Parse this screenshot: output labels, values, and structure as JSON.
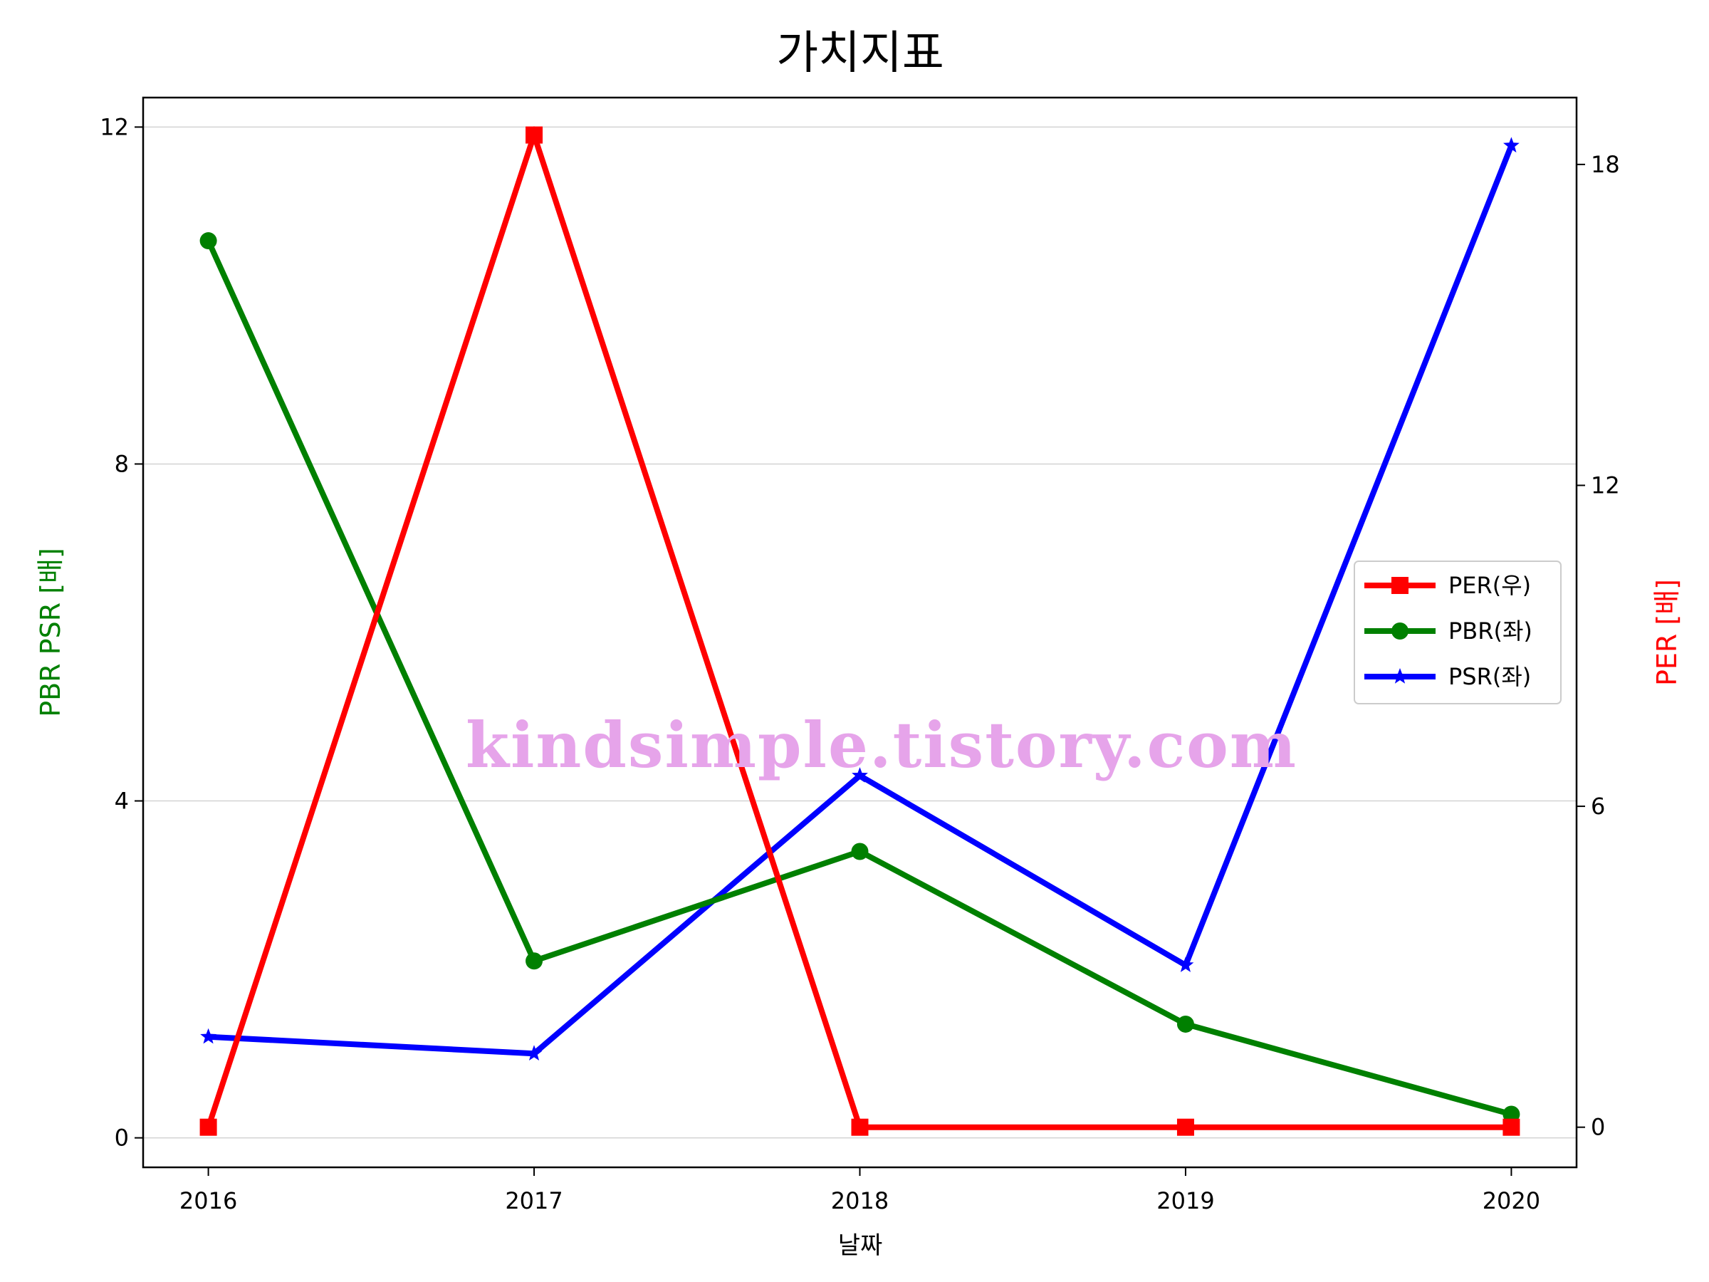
{
  "chart_data": {
    "type": "line",
    "title": "가치지표",
    "xlabel": "날짜",
    "ylabel_left": "PBR PSR [배]",
    "ylabel_right": "PER [배]",
    "categories": [
      "2016",
      "2017",
      "2018",
      "2019",
      "2020"
    ],
    "ylim_left": [
      -0.35,
      12.35
    ],
    "ylim_right": [
      -0.75,
      19.25
    ],
    "yticks_left": [
      0,
      4,
      8,
      12
    ],
    "yticks_right": [
      0,
      6,
      12,
      18
    ],
    "grid": "horizontal (left axis)",
    "legend_position": "center-right",
    "series": [
      {
        "name": "PER(우)",
        "axis": "right",
        "color": "#ff0000",
        "marker": "square",
        "values": [
          0,
          18.55,
          0,
          0,
          0
        ]
      },
      {
        "name": "PBR(좌)",
        "axis": "left",
        "color": "#008000",
        "marker": "circle",
        "values": [
          10.65,
          2.1,
          3.4,
          1.35,
          0.28
        ]
      },
      {
        "name": "PSR(좌)",
        "axis": "left",
        "color": "#0000ff",
        "marker": "star",
        "values": [
          1.2,
          1.0,
          4.3,
          2.05,
          11.78
        ]
      }
    ],
    "watermark": "kindsimple.tistory.com"
  }
}
